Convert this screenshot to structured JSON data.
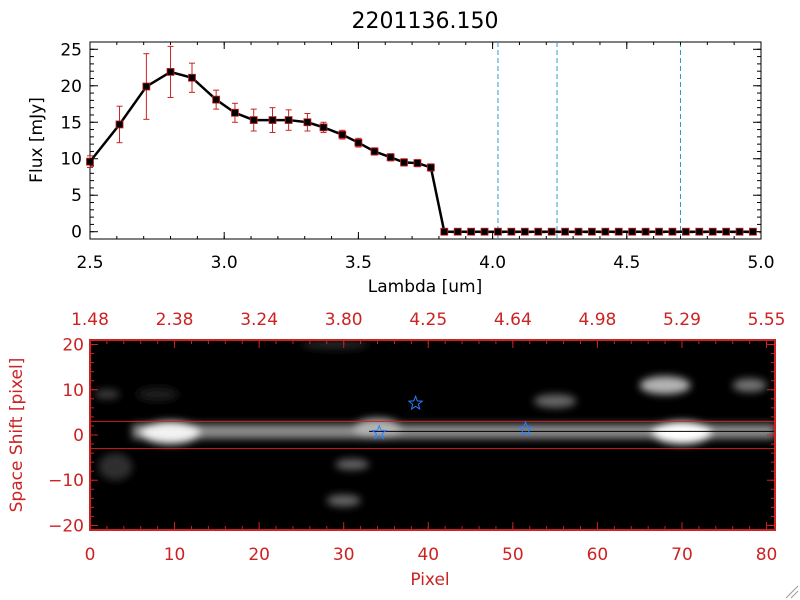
{
  "chart_data": [
    {
      "type": "line",
      "title": "2201136.150",
      "xlabel": "Lambda [um]",
      "ylabel": "Flux [mJy]",
      "xlim": [
        2.5,
        5.0
      ],
      "ylim": [
        -1,
        26
      ],
      "xticks": [
        2.5,
        3.0,
        3.5,
        4.0,
        4.5,
        5.0
      ],
      "xtick_labels": [
        "2.5",
        "3.0",
        "3.5",
        "4.0",
        "4.5",
        "5.0"
      ],
      "yticks": [
        0,
        5,
        10,
        15,
        20,
        25
      ],
      "ytick_labels": [
        "0",
        "5",
        "10",
        "15",
        "20",
        "25"
      ],
      "grid": false,
      "colors": {
        "line": "#000000",
        "errorbar": "#cc2222",
        "vlines": "#3399cc",
        "frame": "#000000"
      },
      "series": [
        {
          "x": [
            2.5,
            2.61,
            2.71,
            2.8,
            2.88,
            2.97,
            3.04,
            3.11,
            3.18,
            3.24,
            3.31,
            3.37,
            3.44,
            3.5,
            3.56,
            3.62,
            3.67,
            3.72,
            3.77,
            3.82,
            3.87,
            3.92,
            3.97,
            4.02,
            4.07,
            4.12,
            4.17,
            4.22,
            4.27,
            4.32,
            4.37,
            4.42,
            4.47,
            4.52,
            4.57,
            4.62,
            4.67,
            4.72,
            4.77,
            4.82,
            4.87,
            4.92,
            4.97
          ],
          "y": [
            9.6,
            14.7,
            19.9,
            21.9,
            21.1,
            18.1,
            16.3,
            15.3,
            15.3,
            15.3,
            15.0,
            14.3,
            13.3,
            12.2,
            11.0,
            10.2,
            9.5,
            9.4,
            8.8,
            0,
            0,
            0,
            0,
            0,
            0,
            0,
            0,
            0,
            0,
            0,
            0,
            0,
            0,
            0,
            0,
            0,
            0,
            0,
            0,
            0,
            0,
            0,
            0
          ],
          "yerr": [
            0.8,
            2.5,
            4.5,
            3.5,
            2.0,
            1.3,
            1.3,
            1.5,
            1.7,
            1.4,
            1.2,
            0.7,
            0.6,
            0.6,
            0.5,
            0.5,
            0.5,
            0.5,
            0.5,
            0,
            0,
            0,
            0,
            0,
            0,
            0,
            0,
            0,
            0,
            0,
            0,
            0,
            0,
            0,
            0,
            0,
            0,
            0,
            0,
            0,
            0,
            0,
            0
          ]
        }
      ],
      "vlines": [
        4.02,
        4.24,
        4.7
      ]
    },
    {
      "type": "heatmap",
      "xlabel": "Pixel",
      "ylabel": "Space Shift [pixel]",
      "xlim": [
        0,
        81
      ],
      "ylim": [
        -21,
        21
      ],
      "xticks": [
        0,
        10,
        20,
        30,
        40,
        50,
        60,
        70,
        80
      ],
      "xtick_labels": [
        "0",
        "10",
        "20",
        "30",
        "40",
        "50",
        "60",
        "70",
        "80"
      ],
      "yticks": [
        -20,
        -10,
        0,
        10,
        20
      ],
      "ytick_labels": [
        "−20",
        "−10",
        "0",
        "10",
        "20"
      ],
      "top_axis_ticks": [
        0,
        10,
        20,
        30,
        40,
        50,
        60,
        70,
        80
      ],
      "top_axis_labels": [
        "1.48",
        "2.38",
        "3.24",
        "3.80",
        "4.25",
        "4.64",
        "4.98",
        "5.29",
        "5.55"
      ],
      "colors": {
        "frame": "#cc2222",
        "hlines": "#cc2222",
        "stars": "#2a7fff",
        "trace": "#000000"
      },
      "hlines": [
        3,
        -3
      ],
      "stars": [
        {
          "x": 34.2,
          "y": 0.5
        },
        {
          "x": 38.5,
          "y": 7.0
        },
        {
          "x": 51.5,
          "y": 1.3
        }
      ],
      "blobs": [
        {
          "x": 9.5,
          "y": 0.5,
          "sx": 3.5,
          "sy": 2.5,
          "a": 0.95
        },
        {
          "x": 34,
          "y": 1.5,
          "sx": 2.8,
          "sy": 2.2,
          "a": 0.7
        },
        {
          "x": 70,
          "y": 0.5,
          "sx": 3.5,
          "sy": 2.5,
          "a": 1.0
        },
        {
          "x": 68,
          "y": 11,
          "sx": 3.0,
          "sy": 2.0,
          "a": 0.7
        },
        {
          "x": 55,
          "y": 7.5,
          "sx": 2.5,
          "sy": 1.5,
          "a": 0.4
        },
        {
          "x": 78,
          "y": 11,
          "sx": 2.0,
          "sy": 1.5,
          "a": 0.45
        },
        {
          "x": 31,
          "y": -6.5,
          "sx": 2.0,
          "sy": 1.2,
          "a": 0.4
        },
        {
          "x": 30,
          "y": -14.5,
          "sx": 2.0,
          "sy": 1.3,
          "a": 0.4
        },
        {
          "x": 2.0,
          "y": 9,
          "sx": 1.5,
          "sy": 1.0,
          "a": 0.25
        },
        {
          "x": 3.0,
          "y": -7,
          "sx": 2.0,
          "sy": 3.0,
          "a": 0.18
        },
        {
          "x": 29,
          "y": 20,
          "sx": 4.0,
          "sy": 1.0,
          "a": 0.15
        },
        {
          "x": 8,
          "y": 9,
          "sx": 2.5,
          "sy": 1.5,
          "a": 0.1
        }
      ],
      "trace": {
        "y": 0.8,
        "x_start": 5,
        "x_end": 81,
        "peak_a": 0.55
      }
    }
  ]
}
